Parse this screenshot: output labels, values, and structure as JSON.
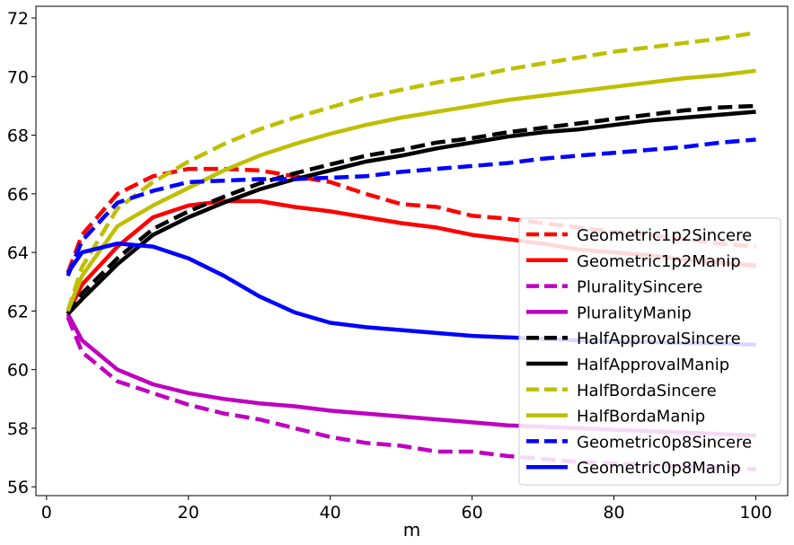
{
  "chart_data": {
    "type": "line",
    "title": "",
    "xlabel": "m",
    "ylabel": "",
    "xlim": [
      -1.5,
      104.5
    ],
    "ylim": [
      55.7,
      72.4
    ],
    "x_ticks": [
      0,
      20,
      40,
      60,
      80,
      100
    ],
    "y_ticks": [
      56,
      58,
      60,
      62,
      64,
      66,
      68,
      70,
      72
    ],
    "grid": false,
    "legend_position": "lower-right",
    "x": [
      3,
      5,
      10,
      15,
      20,
      25,
      30,
      35,
      40,
      45,
      50,
      55,
      60,
      65,
      70,
      75,
      80,
      85,
      90,
      95,
      100
    ],
    "series": [
      {
        "name": "Geometric1p2Sincere",
        "color": "#ff0000",
        "dash": true,
        "values": [
          63.3,
          64.6,
          66.0,
          66.6,
          66.85,
          66.85,
          66.8,
          66.6,
          66.4,
          66.0,
          65.65,
          65.55,
          65.25,
          65.15,
          65.0,
          64.85,
          64.7,
          64.6,
          64.45,
          64.3,
          64.2
        ]
      },
      {
        "name": "Geometric1p2Manip",
        "color": "#ff0000",
        "dash": false,
        "values": [
          61.9,
          62.9,
          64.2,
          65.2,
          65.6,
          65.75,
          65.75,
          65.55,
          65.4,
          65.2,
          65.0,
          64.85,
          64.6,
          64.45,
          64.3,
          64.1,
          64.0,
          63.9,
          63.75,
          63.65,
          63.55
        ]
      },
      {
        "name": "PluralitySincere",
        "color": "#bf00bf",
        "dash": true,
        "values": [
          61.8,
          60.6,
          59.6,
          59.2,
          58.8,
          58.5,
          58.3,
          58.0,
          57.7,
          57.5,
          57.4,
          57.2,
          57.2,
          57.05,
          56.95,
          56.85,
          56.8,
          56.75,
          56.7,
          56.65,
          56.6
        ]
      },
      {
        "name": "PluralityManip",
        "color": "#bf00bf",
        "dash": false,
        "values": [
          61.9,
          61.0,
          60.0,
          59.5,
          59.2,
          59.0,
          58.85,
          58.75,
          58.6,
          58.5,
          58.4,
          58.3,
          58.2,
          58.1,
          58.05,
          58.0,
          57.95,
          57.9,
          57.85,
          57.8,
          57.75
        ]
      },
      {
        "name": "HalfApprovalSincere",
        "color": "#000000",
        "dash": true,
        "values": [
          61.9,
          62.6,
          63.8,
          64.8,
          65.4,
          65.9,
          66.35,
          66.7,
          67.0,
          67.3,
          67.5,
          67.75,
          67.9,
          68.1,
          68.25,
          68.4,
          68.55,
          68.7,
          68.85,
          68.95,
          69.0
        ]
      },
      {
        "name": "HalfApprovalManip",
        "color": "#000000",
        "dash": false,
        "values": [
          61.9,
          62.4,
          63.6,
          64.6,
          65.2,
          65.7,
          66.15,
          66.5,
          66.8,
          67.1,
          67.3,
          67.55,
          67.75,
          67.95,
          68.1,
          68.2,
          68.35,
          68.5,
          68.6,
          68.7,
          68.8
        ]
      },
      {
        "name": "HalfBordaSincere",
        "color": "#bfbf00",
        "dash": true,
        "values": [
          62.0,
          63.5,
          65.5,
          66.4,
          67.1,
          67.7,
          68.2,
          68.6,
          68.95,
          69.3,
          69.55,
          69.8,
          70.0,
          70.25,
          70.45,
          70.65,
          70.85,
          71.0,
          71.15,
          71.3,
          71.5
        ]
      },
      {
        "name": "HalfBordaManip",
        "color": "#bfbf00",
        "dash": false,
        "values": [
          62.0,
          63.2,
          64.9,
          65.6,
          66.2,
          66.8,
          67.3,
          67.7,
          68.05,
          68.35,
          68.6,
          68.8,
          69.0,
          69.2,
          69.35,
          69.5,
          69.65,
          69.8,
          69.95,
          70.05,
          70.2
        ]
      },
      {
        "name": "Geometric0p8Sincere",
        "color": "#0000ff",
        "dash": true,
        "values": [
          63.2,
          64.4,
          65.7,
          66.1,
          66.4,
          66.45,
          66.5,
          66.5,
          66.55,
          66.6,
          66.75,
          66.85,
          66.95,
          67.05,
          67.2,
          67.3,
          67.4,
          67.5,
          67.6,
          67.75,
          67.85
        ]
      },
      {
        "name": "Geometric0p8Manip",
        "color": "#0000ff",
        "dash": false,
        "values": [
          63.3,
          64.0,
          64.3,
          64.2,
          63.8,
          63.2,
          62.5,
          61.95,
          61.6,
          61.45,
          61.35,
          61.25,
          61.15,
          61.1,
          61.05,
          61.0,
          60.95,
          60.95,
          60.9,
          60.9,
          60.85
        ]
      }
    ]
  }
}
